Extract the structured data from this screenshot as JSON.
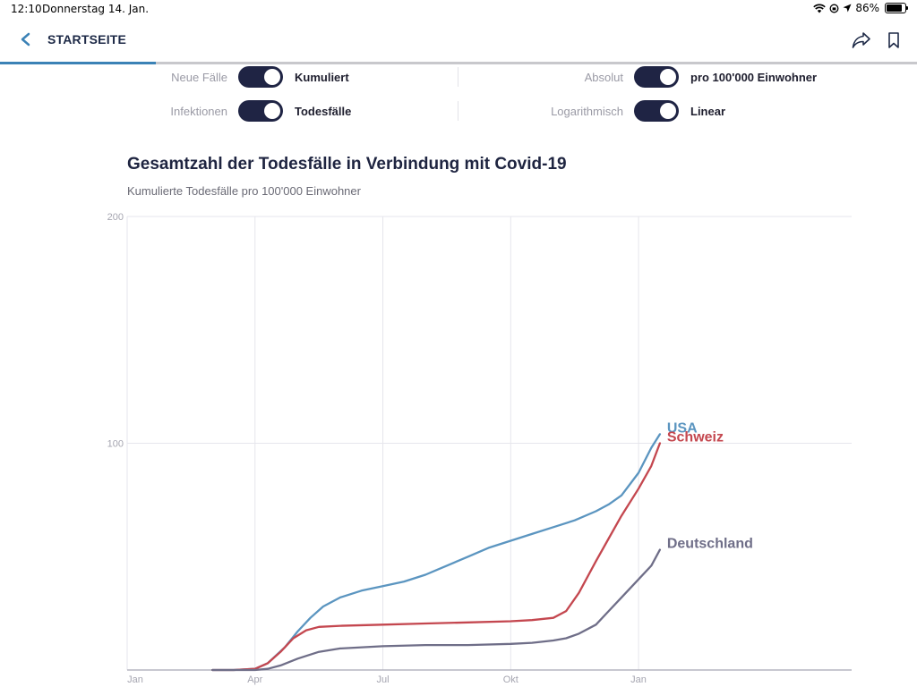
{
  "status_bar": {
    "time": "12:10",
    "date": "Donnerstag 14. Jan.",
    "battery": "86%"
  },
  "nav": {
    "back_label": "STARTSEITE",
    "icons": [
      "back-chevron-icon",
      "share-icon",
      "bookmark-icon"
    ]
  },
  "reading_progress": 0.17,
  "toggles": [
    {
      "off": "Neue Fälle",
      "on": "Kumuliert"
    },
    {
      "off": "Infektionen",
      "on": "Todesfälle"
    },
    {
      "off": "Absolut",
      "on": "pro 100'000 Einwohner"
    },
    {
      "off": "Logarithmisch",
      "on": "Linear"
    }
  ],
  "colors": {
    "accent": "#3b82b6",
    "switch": "#1f2444",
    "usa": "#5b95c0",
    "schweiz": "#c4474f",
    "deutschland": "#6f6e88"
  },
  "chart_data": {
    "type": "line",
    "title": "Gesamtzahl der Todesfälle in Verbindung mit Covid-19",
    "subtitle": "Kumulierte Todesfälle pro 100'000 Einwohner",
    "xlabel": "",
    "ylabel": "",
    "x_ticks": [
      "Jan",
      "Apr",
      "Jul",
      "Okt",
      "Jan"
    ],
    "y_ticks": [
      100,
      200
    ],
    "ylim": [
      0,
      200
    ],
    "grid": true,
    "series": [
      {
        "name": "USA",
        "color": "#5b95c0",
        "months": [
          2,
          2.5,
          3.0,
          3.3,
          3.7,
          4.0,
          4.3,
          4.6,
          5.0,
          5.5,
          6.0,
          6.5,
          7.0,
          7.5,
          8.0,
          8.5,
          9.0,
          9.5,
          10.0,
          10.5,
          11.0,
          11.3,
          11.6,
          12.0,
          12.3,
          12.5
        ],
        "values": [
          0,
          0,
          0.5,
          3,
          10,
          17,
          23,
          28,
          32,
          35,
          37,
          39,
          42,
          46,
          50,
          54,
          57,
          60,
          63,
          66,
          70,
          73,
          77,
          87,
          98,
          104
        ]
      },
      {
        "name": "Schweiz",
        "color": "#c4474f",
        "months": [
          2,
          2.5,
          3.0,
          3.3,
          3.6,
          3.9,
          4.2,
          4.5,
          5.0,
          6.0,
          7.0,
          8.0,
          9.0,
          9.5,
          10.0,
          10.3,
          10.6,
          11.0,
          11.3,
          11.6,
          12.0,
          12.3,
          12.5
        ],
        "values": [
          0,
          0,
          0.5,
          3,
          8,
          14,
          17.5,
          19,
          19.5,
          20,
          20.5,
          21,
          21.5,
          22,
          23,
          26,
          34,
          48,
          58,
          68,
          80,
          90,
          100
        ]
      },
      {
        "name": "Deutschland",
        "color": "#6f6e88",
        "months": [
          2,
          2.5,
          3.0,
          3.3,
          3.6,
          4.0,
          4.5,
          5.0,
          6.0,
          7.0,
          8.0,
          9.0,
          9.5,
          10.0,
          10.3,
          10.6,
          11.0,
          11.3,
          11.6,
          12.0,
          12.3,
          12.5
        ],
        "values": [
          0,
          0,
          0,
          0.5,
          2,
          5,
          8,
          9.5,
          10.5,
          11,
          11,
          11.5,
          12,
          13,
          14,
          16,
          20,
          26,
          32,
          40,
          46,
          53
        ]
      }
    ]
  }
}
